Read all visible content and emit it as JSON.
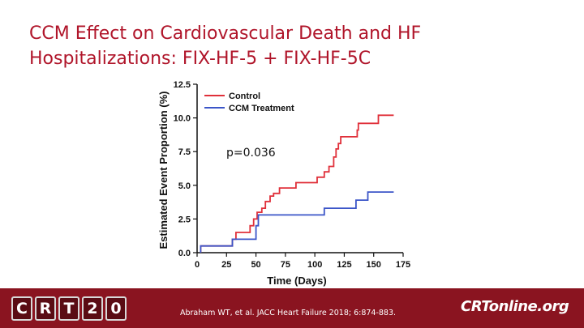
{
  "slide": {
    "title_line1": "CCM Effect on Cardiovascular Death and HF",
    "title_line2": "Hospitalizations:  FIX-HF-5 + FIX-HF-5C",
    "annotation": "p=0.036"
  },
  "footer": {
    "crt_logo_text": "CRT20",
    "citation": "Abraham WT, et al. JACC Heart Failure 2018; 6:874-883.",
    "crtonline_logo": "CRTonline.org",
    "background_color": "#8a1420"
  },
  "chart_data": {
    "type": "line",
    "step": true,
    "xlabel": "Time (Days)",
    "ylabel": "Estimated Event Proportion (%)",
    "xlim": [
      0,
      175
    ],
    "ylim": [
      0,
      12.5
    ],
    "xticks": [
      "0",
      "25",
      "50",
      "75",
      "100",
      "125",
      "150",
      "175"
    ],
    "yticks": [
      "0.0",
      "2.5",
      "5.0",
      "7.5",
      "10.0",
      "12.5"
    ],
    "grid": false,
    "legend_position": "top-left",
    "series": [
      {
        "name": "Control",
        "color": "#e0303a",
        "points": [
          [
            3,
            0
          ],
          [
            3,
            0.5
          ],
          [
            30,
            0.5
          ],
          [
            30,
            1.0
          ],
          [
            33,
            1.0
          ],
          [
            33,
            1.5
          ],
          [
            45,
            1.5
          ],
          [
            45,
            2.0
          ],
          [
            48,
            2.0
          ],
          [
            48,
            2.5
          ],
          [
            51,
            2.5
          ],
          [
            51,
            3.0
          ],
          [
            55,
            3.0
          ],
          [
            55,
            3.3
          ],
          [
            58,
            3.3
          ],
          [
            58,
            3.8
          ],
          [
            62,
            3.8
          ],
          [
            62,
            4.2
          ],
          [
            65,
            4.2
          ],
          [
            65,
            4.4
          ],
          [
            70,
            4.4
          ],
          [
            70,
            4.8
          ],
          [
            84,
            4.8
          ],
          [
            84,
            5.2
          ],
          [
            102,
            5.2
          ],
          [
            102,
            5.6
          ],
          [
            108,
            5.6
          ],
          [
            108,
            6.0
          ],
          [
            112,
            6.0
          ],
          [
            112,
            6.4
          ],
          [
            116,
            6.4
          ],
          [
            116,
            7.1
          ],
          [
            118,
            7.1
          ],
          [
            118,
            7.7
          ],
          [
            120,
            7.7
          ],
          [
            120,
            8.1
          ],
          [
            122,
            8.1
          ],
          [
            122,
            8.6
          ],
          [
            136,
            8.6
          ],
          [
            136,
            9.1
          ],
          [
            137,
            9.1
          ],
          [
            137,
            9.6
          ],
          [
            154,
            9.6
          ],
          [
            154,
            10.2
          ],
          [
            167,
            10.2
          ]
        ]
      },
      {
        "name": "CCM Treatment",
        "color": "#3b55c8",
        "points": [
          [
            3,
            0
          ],
          [
            3,
            0.5
          ],
          [
            30,
            0.5
          ],
          [
            30,
            1.0
          ],
          [
            50,
            1.0
          ],
          [
            50,
            2.0
          ],
          [
            52,
            2.0
          ],
          [
            52,
            2.8
          ],
          [
            108,
            2.8
          ],
          [
            108,
            3.3
          ],
          [
            135,
            3.3
          ],
          [
            135,
            3.9
          ],
          [
            145,
            3.9
          ],
          [
            145,
            4.5
          ],
          [
            167,
            4.5
          ]
        ]
      }
    ]
  }
}
